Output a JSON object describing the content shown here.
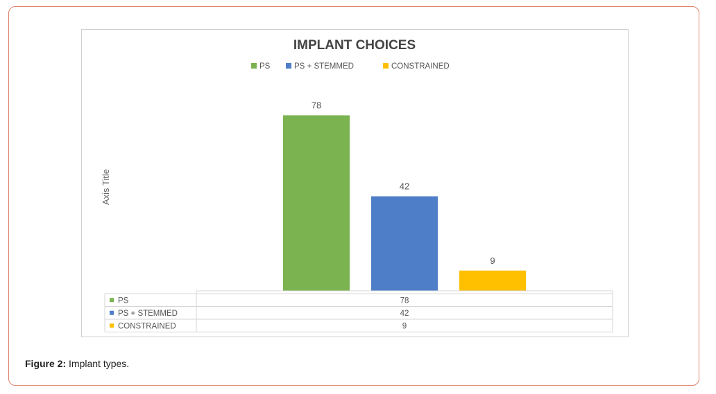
{
  "chart_data": {
    "type": "bar",
    "title": "IMPLANT CHOICES",
    "ylabel": "Axis Title",
    "xlabel": "",
    "ylim": [
      0,
      80
    ],
    "legend_position": "top-center",
    "data_table": true,
    "series": [
      {
        "name": "PS",
        "value": 78,
        "color": "#7ab34f"
      },
      {
        "name": "PS + STEMMED",
        "value": 42,
        "color": "#4e7ec8"
      },
      {
        "name": "CONSTRAINED",
        "value": 9,
        "color": "#ffc000"
      }
    ]
  },
  "caption": {
    "label": "Figure 2:",
    "text": "Implant types."
  }
}
